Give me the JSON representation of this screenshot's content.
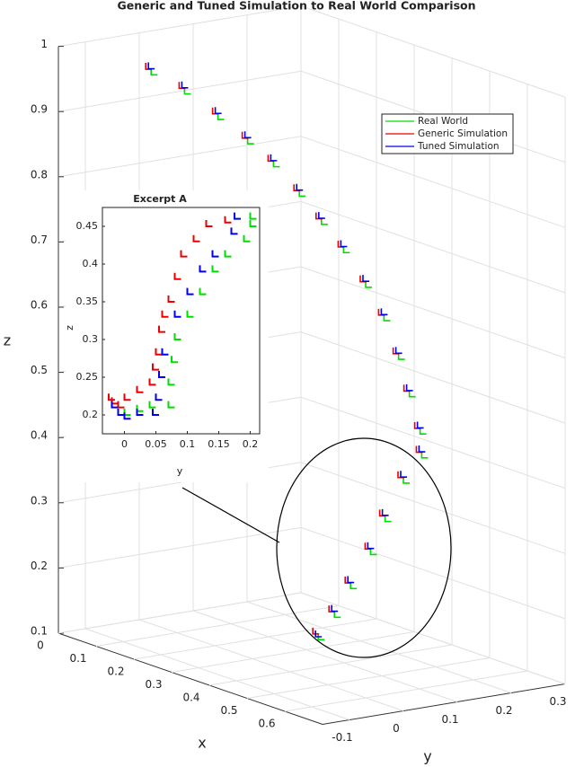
{
  "chart_data": [
    {
      "type": "scatter3d",
      "title": "Generic and Tuned Simulation to Real World Comparison",
      "xlabel": "x",
      "ylabel": "y",
      "zlabel": "z",
      "xlim": [
        0,
        0.7
      ],
      "ylim": [
        -0.15,
        0.3
      ],
      "zlim": [
        0.1,
        1
      ],
      "xticks": [
        0,
        0.1,
        0.2,
        0.3,
        0.4,
        0.5,
        0.6
      ],
      "yticks": [
        -0.1,
        0,
        0.1,
        0.2,
        0.3
      ],
      "zticks": [
        0.1,
        0.2,
        0.3,
        0.4,
        0.5,
        0.6,
        0.7,
        0.8,
        0.9,
        1
      ],
      "grid": true,
      "legend": "northeast",
      "series": [
        {
          "name": "Real World",
          "color": "#00dd00",
          "x": [
            0.16,
            0.22,
            0.28,
            0.33,
            0.37,
            0.41,
            0.44,
            0.47,
            0.5,
            0.52,
            0.53,
            0.53,
            0.53,
            0.52,
            0.5,
            0.48,
            0.47,
            0.46,
            0.46,
            0.46
          ],
          "y": [
            -0.09,
            -0.07,
            -0.05,
            -0.03,
            -0.01,
            0.01,
            0.03,
            0.05,
            0.07,
            0.09,
            0.11,
            0.13,
            0.15,
            0.16,
            0.14,
            0.12,
            0.1,
            0.07,
            0.04,
            0.01
          ],
          "z": [
            0.98,
            0.96,
            0.93,
            0.9,
            0.87,
            0.83,
            0.79,
            0.75,
            0.7,
            0.65,
            0.59,
            0.53,
            0.47,
            0.43,
            0.39,
            0.33,
            0.28,
            0.23,
            0.19,
            0.16
          ]
        },
        {
          "name": "Generic Simulation",
          "color": "#ee0000",
          "x": [
            0.16,
            0.22,
            0.28,
            0.33,
            0.37,
            0.41,
            0.44,
            0.47,
            0.5,
            0.52,
            0.53,
            0.53,
            0.53,
            0.52,
            0.5,
            0.48,
            0.47,
            0.46,
            0.46,
            0.46
          ],
          "y": [
            -0.1,
            -0.08,
            -0.06,
            -0.04,
            -0.02,
            0.0,
            0.02,
            0.04,
            0.06,
            0.08,
            0.1,
            0.12,
            0.14,
            0.15,
            0.13,
            0.11,
            0.09,
            0.06,
            0.03,
            0.0
          ],
          "z": [
            0.99,
            0.97,
            0.94,
            0.91,
            0.88,
            0.84,
            0.8,
            0.76,
            0.71,
            0.66,
            0.6,
            0.54,
            0.48,
            0.44,
            0.4,
            0.34,
            0.29,
            0.24,
            0.2,
            0.17
          ]
        },
        {
          "name": "Tuned Simulation",
          "color": "#0000ee",
          "x": [
            0.16,
            0.22,
            0.28,
            0.33,
            0.37,
            0.41,
            0.44,
            0.47,
            0.5,
            0.52,
            0.53,
            0.53,
            0.53,
            0.52,
            0.5,
            0.48,
            0.47,
            0.46,
            0.46,
            0.46
          ],
          "y": [
            -0.095,
            -0.075,
            -0.055,
            -0.035,
            -0.015,
            0.005,
            0.025,
            0.045,
            0.065,
            0.085,
            0.105,
            0.125,
            0.145,
            0.155,
            0.135,
            0.115,
            0.095,
            0.065,
            0.035,
            0.005
          ],
          "z": [
            0.99,
            0.97,
            0.94,
            0.91,
            0.88,
            0.84,
            0.8,
            0.76,
            0.71,
            0.66,
            0.6,
            0.54,
            0.48,
            0.44,
            0.4,
            0.34,
            0.29,
            0.24,
            0.2,
            0.165
          ]
        }
      ]
    },
    {
      "type": "scatter",
      "title": "Excerpt A",
      "xlabel": "y",
      "ylabel": "z",
      "xlim": [
        -0.035,
        0.215
      ],
      "ylim": [
        0.175,
        0.475
      ],
      "xticks": [
        0,
        0.05,
        0.1,
        0.15,
        0.2
      ],
      "yticks": [
        0.2,
        0.25,
        0.3,
        0.35,
        0.4,
        0.45
      ],
      "series": [
        {
          "color": "#00dd00",
          "x": [
            0.0,
            0.02,
            0.04,
            0.07,
            0.07,
            0.075,
            0.08,
            0.1,
            0.12,
            0.14,
            0.16,
            0.19,
            0.2,
            0.2
          ],
          "values": [
            0.2,
            0.205,
            0.21,
            0.21,
            0.24,
            0.27,
            0.3,
            0.33,
            0.36,
            0.39,
            0.41,
            0.43,
            0.45,
            0.46
          ]
        },
        {
          "color": "#ee0000",
          "x": [
            -0.025,
            -0.02,
            -0.01,
            0.0,
            0.02,
            0.04,
            0.045,
            0.05,
            0.055,
            0.06,
            0.07,
            0.08,
            0.09,
            0.11,
            0.13,
            0.16
          ],
          "values": [
            0.22,
            0.215,
            0.21,
            0.22,
            0.23,
            0.24,
            0.26,
            0.28,
            0.31,
            0.33,
            0.35,
            0.38,
            0.41,
            0.43,
            0.45,
            0.455
          ]
        },
        {
          "color": "#0000ee",
          "x": [
            -0.02,
            -0.01,
            0.0,
            0.02,
            0.045,
            0.05,
            0.055,
            0.06,
            0.08,
            0.1,
            0.12,
            0.14,
            0.17,
            0.175
          ],
          "values": [
            0.21,
            0.2,
            0.195,
            0.2,
            0.2,
            0.22,
            0.25,
            0.28,
            0.33,
            0.36,
            0.39,
            0.41,
            0.44,
            0.46
          ]
        }
      ]
    }
  ]
}
